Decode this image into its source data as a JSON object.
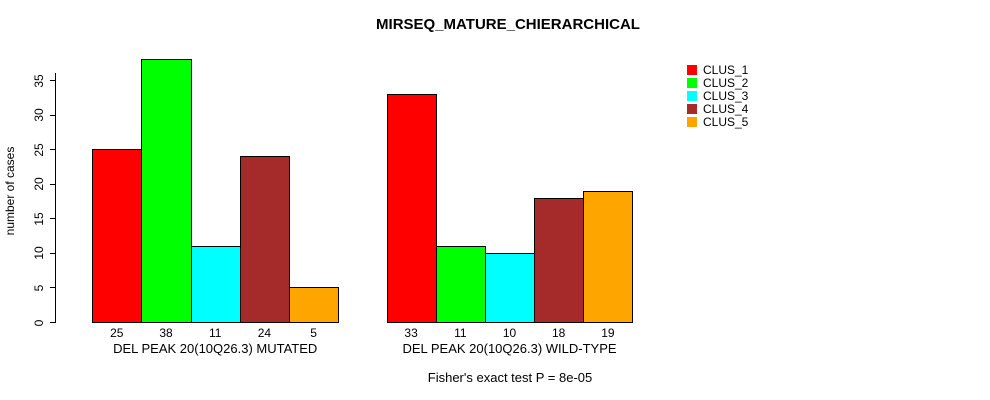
{
  "chart_data": {
    "type": "bar",
    "title": "MIRSEQ_MATURE_CHIERARCHICAL",
    "ylabel": "number of cases",
    "xlabel": "",
    "caption": "Fisher's exact test P = 8e-05",
    "ylim": [
      0,
      35
    ],
    "yticks": [
      0,
      5,
      10,
      15,
      20,
      25,
      30,
      35
    ],
    "grid": "off",
    "legend_position": "top-right",
    "series": [
      {
        "name": "CLUS_1",
        "color": "#FF0000"
      },
      {
        "name": "CLUS_2",
        "color": "#00FF00"
      },
      {
        "name": "CLUS_3",
        "color": "#00FFFF"
      },
      {
        "name": "CLUS_4",
        "color": "#A52A2A"
      },
      {
        "name": "CLUS_5",
        "color": "#FFA500"
      }
    ],
    "groups": [
      {
        "label": "DEL PEAK 20(10Q26.3) MUTATED",
        "values": [
          25,
          38,
          11,
          24,
          5
        ]
      },
      {
        "label": "DEL PEAK 20(10Q26.3) WILD-TYPE",
        "values": [
          33,
          11,
          10,
          18,
          19
        ]
      }
    ]
  }
}
